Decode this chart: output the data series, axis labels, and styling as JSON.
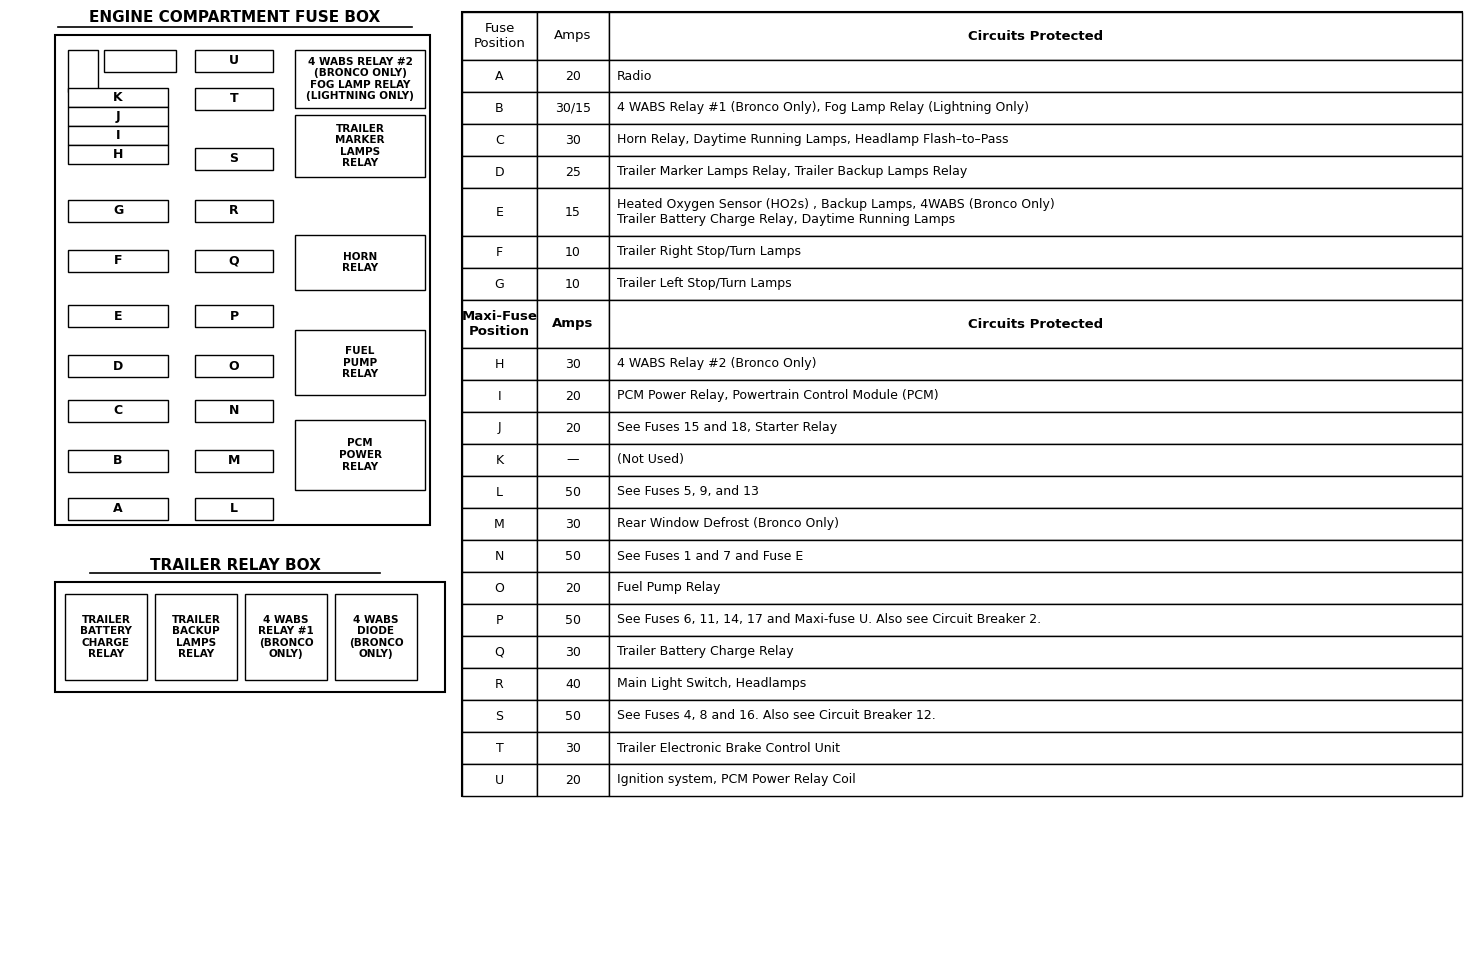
{
  "title_engine": "ENGINE COMPARTMENT FUSE BOX",
  "title_trailer": "TRAILER RELAY BOX",
  "bg_color": "#ffffff",
  "relay_labels_right": [
    "4 WABS RELAY #2\n(BRONCO ONLY)\nFOG LAMP RELAY\n(LIGHTNING ONLY)",
    "TRAILER\nMARKER\nLAMPS\nRELAY",
    "HORN\nRELAY",
    "FUEL\nPUMP\nRELAY",
    "PCM\nPOWER\nRELAY"
  ],
  "trailer_relays": [
    "TRAILER\nBATTERY\nCHARGE\nRELAY",
    "TRAILER\nBACKUP\nLAMPS\nRELAY",
    "4 WABS\nRELAY #1\n(BRONCO\nONLY)",
    "4 WABS\nDIODE\n(BRONCO\nONLY)"
  ],
  "table_col_headers": [
    "Fuse\nPosition",
    "Amps",
    "Circuits Protected"
  ],
  "fuse_rows": [
    [
      "A",
      "20",
      "Radio"
    ],
    [
      "B",
      "30/15",
      "4 WABS Relay #1 (Bronco Only), Fog Lamp Relay (Lightning Only)"
    ],
    [
      "C",
      "30",
      "Horn Relay, Daytime Running Lamps, Headlamp Flash–to–Pass"
    ],
    [
      "D",
      "25",
      "Trailer Marker Lamps Relay, Trailer Backup Lamps Relay"
    ],
    [
      "E",
      "15",
      "Heated Oxygen Sensor (HO2s) , Backup Lamps, 4WABS (Bronco Only)\nTrailer Battery Charge Relay, Daytime Running Lamps"
    ],
    [
      "F",
      "10",
      "Trailer Right Stop/Turn Lamps"
    ],
    [
      "G",
      "10",
      "Trailer Left Stop/Turn Lamps"
    ]
  ],
  "maxi_col_headers": [
    "Maxi-Fuse\nPosition",
    "Amps",
    "Circuits Protected"
  ],
  "maxi_rows": [
    [
      "H",
      "30",
      "4 WABS Relay #2 (Bronco Only)"
    ],
    [
      "I",
      "20",
      "PCM Power Relay, Powertrain Control Module (PCM)"
    ],
    [
      "J",
      "20",
      "See Fuses 15 and 18, Starter Relay"
    ],
    [
      "K",
      "—",
      "(Not Used)"
    ],
    [
      "L",
      "50",
      "See Fuses 5, 9, and 13"
    ],
    [
      "M",
      "30",
      "Rear Window Defrost (Bronco Only)"
    ],
    [
      "N",
      "50",
      "See Fuses 1 and 7 and Fuse E"
    ],
    [
      "O",
      "20",
      "Fuel Pump Relay"
    ],
    [
      "P",
      "50",
      "See Fuses 6, 11, 14, 17 and Maxi-fuse U. Also see Circuit Breaker 2."
    ],
    [
      "Q",
      "30",
      "Trailer Battery Charge Relay"
    ],
    [
      "R",
      "40",
      "Main Light Switch, Headlamps"
    ],
    [
      "S",
      "50",
      "See Fuses 4, 8 and 16. Also see Circuit Breaker 12."
    ],
    [
      "T",
      "30",
      "Trailer Electronic Brake Control Unit"
    ],
    [
      "U",
      "20",
      "Ignition system, PCM Power Relay Coil"
    ]
  ]
}
